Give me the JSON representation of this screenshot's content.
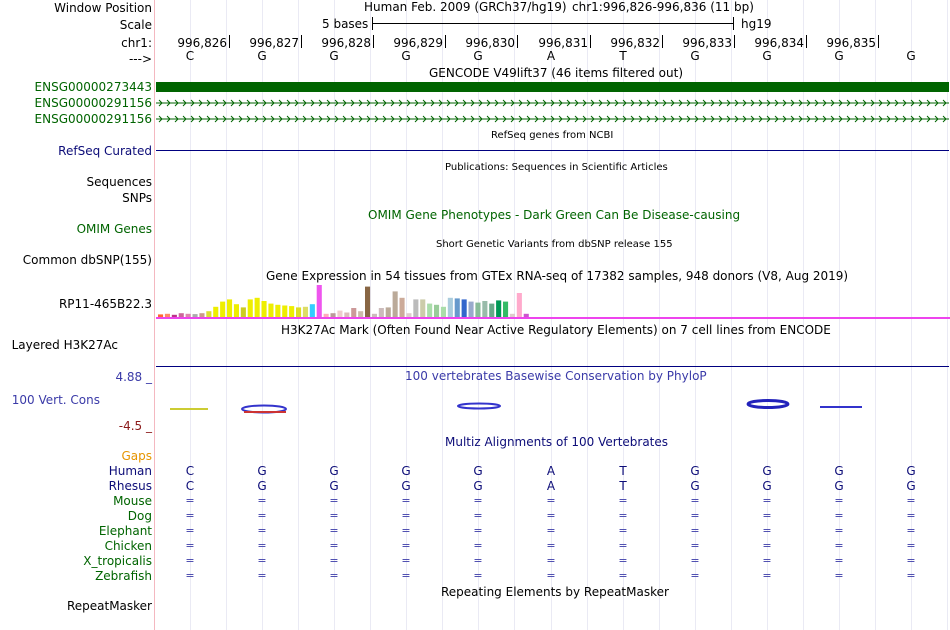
{
  "ruler": {
    "window_position_label": "Window Position",
    "scale_label": "Scale",
    "chrom_label": "chr1:",
    "arrow_label": "--->",
    "assembly": "Human Feb. 2009 (GRCh37/hg19)",
    "position": "chr1:996,826-996,836 (11 bp)",
    "scale_text": "5 bases",
    "db": "hg19",
    "coords": [
      "996,826",
      "996,827",
      "996,828",
      "996,829",
      "996,830",
      "996,831",
      "996,832",
      "996,833",
      "996,834",
      "996,835"
    ],
    "bases": [
      "C",
      "G",
      "G",
      "G",
      "G",
      "A",
      "T",
      "G",
      "G",
      "G",
      "G"
    ]
  },
  "gencode": {
    "title": "GENCODE V49lift37 (46 items filtered out)",
    "items": [
      "ENSG00000273443",
      "ENSG00000291156",
      "ENSG00000291156"
    ]
  },
  "refseq": {
    "title": "RefSeq genes from NCBI",
    "label": "RefSeq Curated"
  },
  "publications": {
    "title": "Publications: Sequences in Scientific Articles",
    "labels": [
      "Sequences",
      "SNPs"
    ]
  },
  "omim": {
    "title": "OMIM Gene Phenotypes - Dark Green Can Be Disease-causing",
    "label": "OMIM Genes"
  },
  "dbsnp": {
    "title": "Short Genetic Variants from dbSNP release 155",
    "label": "Common dbSNP(155)"
  },
  "gtex": {
    "title": "Gene Expression in 54 tissues from GTEx RNA-seq of 17382 samples, 948 donors (V8, Aug 2019)",
    "label": "RP11-465B22.3",
    "bars": [
      0.08,
      0.1,
      0.07,
      0.12,
      0.1,
      0.09,
      0.12,
      0.18,
      0.32,
      0.48,
      0.55,
      0.4,
      0.3,
      0.55,
      0.6,
      0.5,
      0.42,
      0.38,
      0.36,
      0.34,
      0.3,
      0.32,
      0.4,
      1.0,
      0.1,
      0.12,
      0.2,
      0.14,
      0.28,
      0.18,
      0.95,
      0.1,
      0.28,
      0.3,
      0.8,
      0.6,
      0.12,
      0.55,
      0.55,
      0.42,
      0.38,
      0.32,
      0.6,
      0.58,
      0.55,
      0.48,
      0.45,
      0.5,
      0.42,
      0.52,
      0.48,
      0.1,
      0.75,
      0.1
    ],
    "colors": [
      "#ff6633",
      "#ff8866",
      "#bb3388",
      "#cc6699",
      "#dd88aa",
      "#aaaaaa",
      "#cc9988",
      "#dddd33",
      "#eeee00",
      "#eeee00",
      "#eeee00",
      "#eeee00",
      "#cccc22",
      "#eeee00",
      "#eeee00",
      "#eeee00",
      "#eeee00",
      "#eeee00",
      "#eeee00",
      "#eeee00",
      "#dddd22",
      "#dddd66",
      "#33ccff",
      "#ee55ee",
      "#ffaabb",
      "#bb9999",
      "#eecccc",
      "#ddbbbb",
      "#cc9999",
      "#ccbbaa",
      "#886644",
      "#ccbbbb",
      "#ccbbbb",
      "#bbaa99",
      "#bbaa99",
      "#ccaa99",
      "#ddcccc",
      "#bbbbbb",
      "#ccccaa",
      "#aaddaa",
      "#99cc99",
      "#aaddaa",
      "#aaccdd",
      "#6699cc",
      "#3366cc",
      "#99aacc",
      "#88bb99",
      "#99bbaa",
      "#66aa88",
      "#009955",
      "#33bb66",
      "#ddcccc",
      "#ffaacc",
      "#cc55cc"
    ]
  },
  "h3k27ac": {
    "title": "H3K27Ac Mark (Often Found Near Active Regulatory Elements) on 7 cell lines from ENCODE",
    "label": "Layered H3K27Ac"
  },
  "phylop": {
    "title": "100 vertebrates Basewise Conservation by PhyloP",
    "label": "100 Vert. Cons",
    "max": "4.88 _",
    "min": "-4.5 _"
  },
  "multiz": {
    "title": "Multiz Alignments of 100 Vertebrates",
    "gaps_label": "Gaps",
    "species": [
      {
        "name": "Human",
        "seq": [
          "C",
          "G",
          "G",
          "G",
          "G",
          "A",
          "T",
          "G",
          "G",
          "G",
          "G"
        ]
      },
      {
        "name": "Rhesus",
        "seq": [
          "C",
          "G",
          "G",
          "G",
          "G",
          "A",
          "T",
          "G",
          "G",
          "G",
          "G"
        ]
      },
      {
        "name": "Mouse",
        "seq": [
          "=",
          "=",
          "=",
          "=",
          "=",
          "=",
          "=",
          "=",
          "=",
          "=",
          "="
        ]
      },
      {
        "name": "Dog",
        "seq": [
          "=",
          "=",
          "=",
          "=",
          "=",
          "=",
          "=",
          "=",
          "=",
          "=",
          "="
        ]
      },
      {
        "name": "Elephant",
        "seq": [
          "=",
          "=",
          "=",
          "=",
          "=",
          "=",
          "=",
          "=",
          "=",
          "=",
          "="
        ]
      },
      {
        "name": "Chicken",
        "seq": [
          "=",
          "=",
          "=",
          "=",
          "=",
          "=",
          "=",
          "=",
          "=",
          "=",
          "="
        ]
      },
      {
        "name": "X_tropicalis",
        "seq": [
          "=",
          "=",
          "=",
          "=",
          "=",
          "=",
          "=",
          "=",
          "=",
          "=",
          "="
        ]
      },
      {
        "name": "Zebrafish",
        "seq": [
          "=",
          "=",
          "=",
          "=",
          "=",
          "=",
          "=",
          "=",
          "=",
          "=",
          "="
        ]
      }
    ]
  },
  "repeatmasker": {
    "title": "Repeating Elements by RepeatMasker",
    "label": "RepeatMasker"
  },
  "colors": {
    "gencode": "#006400",
    "navy": "#0c0c78",
    "phylop": "#3a3aa8",
    "gaps": "#e69500",
    "species_green": "#006400",
    "track_line": "#000080",
    "border": "#ffc0cb"
  }
}
